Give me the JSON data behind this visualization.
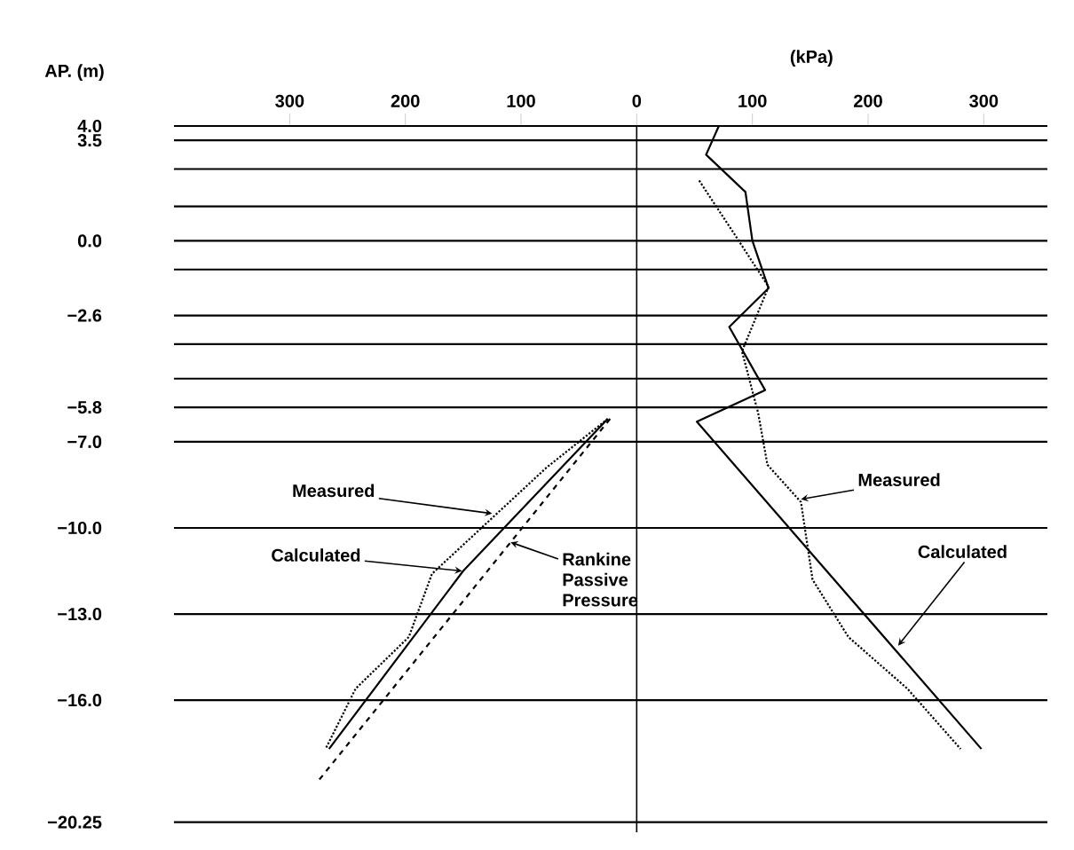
{
  "chart_data": {
    "type": "line",
    "xlabel": "(kPa)",
    "ylabel": "AP. (m)",
    "xlim": [
      -400,
      355
    ],
    "ylim": [
      -20.6,
      4.0
    ],
    "xticks": [
      {
        "value": -300,
        "label": "300"
      },
      {
        "value": -200,
        "label": "200"
      },
      {
        "value": -100,
        "label": "100"
      },
      0,
      100,
      200,
      300
    ],
    "yticks": [
      {
        "value": 4.0,
        "label": "4.0"
      },
      {
        "value": 3.5,
        "label": "3.5"
      },
      {
        "value": 0.0,
        "label": "0.0"
      },
      {
        "value": -2.6,
        "label": "−2.6"
      },
      {
        "value": -5.8,
        "label": "−5.8"
      },
      {
        "value": -7.0,
        "label": "−7.0"
      },
      {
        "value": -10.0,
        "label": "−10.0"
      },
      {
        "value": -13.0,
        "label": "−13.0"
      },
      {
        "value": -16.0,
        "label": "−16.0"
      },
      {
        "value": -20.25,
        "label": "−20.25"
      }
    ],
    "series": [
      {
        "color": "#000000",
        "line_style": "solid",
        "x": [
          71,
          60,
          94,
          100,
          114,
          80,
          111,
          52,
          298
        ],
        "values": [
          4.0,
          3.0,
          1.7,
          0.0,
          -1.65,
          -3.0,
          -5.2,
          -6.3,
          -17.7
        ]
      },
      {
        "color": "#000000",
        "line_style": "dotted",
        "x": [
          54,
          85,
          114,
          91,
          105,
          113,
          142,
          152,
          183,
          234,
          280
        ],
        "values": [
          2.1,
          0.2,
          -1.6,
          -3.85,
          -6.0,
          -7.8,
          -9.1,
          -11.8,
          -13.8,
          -15.6,
          -17.7
        ]
      },
      {
        "color": "#000000",
        "line_style": "solid",
        "x": [
          -25,
          -150,
          -266
        ],
        "values": [
          -6.2,
          -11.5,
          -17.7
        ]
      },
      {
        "color": "#000000",
        "line_style": "dotted",
        "x": [
          -25,
          -78,
          -177,
          -197,
          -243,
          -269
        ],
        "values": [
          -6.2,
          -7.9,
          -11.6,
          -13.8,
          -15.6,
          -17.7
        ]
      },
      {
        "color": "#000000",
        "line_style": "dashed",
        "x": [
          -23,
          -277
        ],
        "values": [
          -6.2,
          -18.9
        ]
      }
    ],
    "ref_lines": [
      {
        "axis": "y",
        "value": 3.5
      },
      {
        "axis": "y",
        "value": 2.5
      },
      {
        "axis": "y",
        "value": 1.2
      },
      {
        "axis": "y",
        "value": 0.0
      },
      {
        "axis": "y",
        "value": -1.0
      },
      {
        "axis": "y",
        "value": -2.6
      },
      {
        "axis": "y",
        "value": -3.6
      },
      {
        "axis": "y",
        "value": -4.8
      },
      {
        "axis": "y",
        "value": -5.8
      },
      {
        "axis": "y",
        "value": -7.0
      },
      {
        "axis": "y",
        "value": -10.0
      },
      {
        "axis": "y",
        "value": -13.0
      },
      {
        "axis": "y",
        "value": -16.0
      },
      {
        "axis": "y",
        "value": -20.25
      },
      {
        "axis": "x",
        "value": 0
      }
    ],
    "annotations": [
      {
        "text": "Measured",
        "x": -125,
        "y": -9.5
      },
      {
        "text": "Calculated",
        "x": -151,
        "y": -11.5
      },
      {
        "text": "Rankine Passive Pressure",
        "x": -109,
        "y": -10.5
      },
      {
        "text": "Measured",
        "x": 142,
        "y": -9.0
      },
      {
        "text": "Calculated",
        "x": 226,
        "y": -14.1
      }
    ],
    "grid": false
  }
}
